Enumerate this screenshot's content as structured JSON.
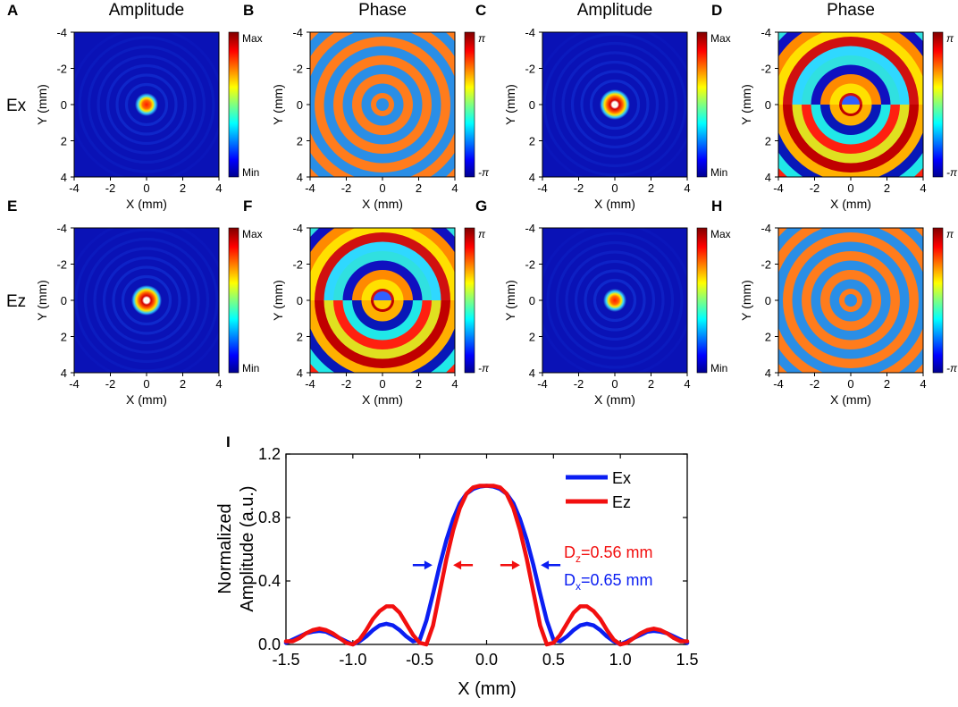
{
  "figure": {
    "panels": [
      {
        "letter": "A",
        "header": "Amplitude",
        "pattern": "amp",
        "variant": "ex",
        "cbar": "amp"
      },
      {
        "letter": "B",
        "header": "Phase",
        "pattern": "phase",
        "variant": "rings",
        "cbar": "phase"
      },
      {
        "letter": "C",
        "header": "Amplitude",
        "pattern": "amp",
        "variant": "ring",
        "cbar": "amp"
      },
      {
        "letter": "D",
        "header": "Phase",
        "pattern": "phase",
        "variant": "vortex",
        "cbar": "phase"
      },
      {
        "letter": "E",
        "header": "",
        "pattern": "amp",
        "variant": "ring",
        "cbar": "amp"
      },
      {
        "letter": "F",
        "header": "",
        "pattern": "phase",
        "variant": "vortex",
        "cbar": "phase"
      },
      {
        "letter": "G",
        "header": "",
        "pattern": "amp",
        "variant": "ex",
        "cbar": "amp"
      },
      {
        "letter": "H",
        "header": "",
        "pattern": "phase",
        "variant": "rings",
        "cbar": "phase"
      }
    ],
    "row_labels": [
      "Ex",
      "Ez"
    ],
    "amp_colorbar": {
      "max": "Max",
      "min": "Min"
    },
    "phase_colorbar": {
      "max": "π",
      "min": "-π"
    },
    "xlabel": "X (mm)",
    "ylabel": "Y (mm)",
    "xticks": [
      "-4",
      "-2",
      "0",
      "2",
      "4"
    ],
    "yticks": [
      "-4",
      "-2",
      "0",
      "2",
      "4"
    ],
    "panel_i_letter": "I",
    "colors": {
      "ex": "#0b1ef2",
      "ez": "#f20f0f",
      "map_bg": "#0a12b6",
      "ring_orange": "#ff7c1c",
      "ring_blue": "#2a8ee6"
    }
  },
  "chart_data": [
    {
      "type": "heatmap",
      "panels": [
        "A",
        "B",
        "C",
        "D",
        "E",
        "F",
        "G",
        "H"
      ],
      "x_range_mm": [
        -4,
        4
      ],
      "y_range_mm": [
        -4,
        4
      ],
      "xlabel": "X (mm)",
      "ylabel": "Y (mm)",
      "amplitude_scale": [
        "Min",
        "Max"
      ],
      "phase_scale": [
        "-π",
        "π"
      ]
    },
    {
      "type": "line",
      "panel": "I",
      "xlabel": "X (mm)",
      "ylabel_lines": [
        "Normalized",
        "Amplitude (a.u.)"
      ],
      "xlim": [
        -1.5,
        1.5
      ],
      "ylim": [
        0,
        1.2
      ],
      "xticks": [
        "-1.5",
        "-1.0",
        "-0.5",
        "0.0",
        "0.5",
        "1.0",
        "1.5"
      ],
      "yticks": [
        "0.0",
        "0.4",
        "0.8",
        "1.2"
      ],
      "series": [
        {
          "name": "Ex",
          "color": "#0b1ef2",
          "x": [
            -1.5,
            -1.45,
            -1.4,
            -1.35,
            -1.3,
            -1.25,
            -1.2,
            -1.15,
            -1.1,
            -1.05,
            -1.0,
            -0.95,
            -0.9,
            -0.85,
            -0.8,
            -0.75,
            -0.7,
            -0.65,
            -0.6,
            -0.55,
            -0.5,
            -0.45,
            -0.4,
            -0.35,
            -0.3,
            -0.25,
            -0.2,
            -0.15,
            -0.1,
            -0.05,
            0.0,
            0.05,
            0.1,
            0.15,
            0.2,
            0.25,
            0.3,
            0.35,
            0.4,
            0.45,
            0.5,
            0.55,
            0.6,
            0.65,
            0.7,
            0.75,
            0.8,
            0.85,
            0.9,
            0.95,
            1.0,
            1.05,
            1.1,
            1.15,
            1.2,
            1.25,
            1.3,
            1.35,
            1.4,
            1.45,
            1.5
          ],
          "values": [
            0.01,
            0.03,
            0.05,
            0.07,
            0.08,
            0.085,
            0.08,
            0.06,
            0.04,
            0.02,
            0.0,
            0.02,
            0.05,
            0.09,
            0.12,
            0.13,
            0.12,
            0.09,
            0.05,
            0.02,
            0.03,
            0.15,
            0.32,
            0.5,
            0.66,
            0.79,
            0.89,
            0.95,
            0.98,
            0.995,
            1.0,
            0.995,
            0.98,
            0.95,
            0.89,
            0.79,
            0.66,
            0.5,
            0.32,
            0.15,
            0.03,
            0.02,
            0.05,
            0.09,
            0.12,
            0.13,
            0.12,
            0.09,
            0.05,
            0.02,
            0.0,
            0.02,
            0.04,
            0.06,
            0.08,
            0.085,
            0.08,
            0.07,
            0.05,
            0.03,
            0.01
          ]
        },
        {
          "name": "Ez",
          "color": "#f20f0f",
          "x": [
            -1.5,
            -1.45,
            -1.4,
            -1.35,
            -1.3,
            -1.25,
            -1.2,
            -1.15,
            -1.1,
            -1.05,
            -1.0,
            -0.95,
            -0.9,
            -0.85,
            -0.8,
            -0.75,
            -0.7,
            -0.65,
            -0.6,
            -0.55,
            -0.5,
            -0.45,
            -0.4,
            -0.35,
            -0.3,
            -0.25,
            -0.2,
            -0.15,
            -0.1,
            -0.05,
            0.0,
            0.05,
            0.1,
            0.15,
            0.2,
            0.25,
            0.3,
            0.35,
            0.4,
            0.45,
            0.5,
            0.55,
            0.6,
            0.65,
            0.7,
            0.75,
            0.8,
            0.85,
            0.9,
            0.95,
            1.0,
            1.05,
            1.1,
            1.15,
            1.2,
            1.25,
            1.3,
            1.35,
            1.4,
            1.45,
            1.5
          ],
          "values": [
            0.02,
            0.02,
            0.04,
            0.07,
            0.09,
            0.1,
            0.09,
            0.07,
            0.04,
            0.01,
            0.0,
            0.03,
            0.09,
            0.16,
            0.21,
            0.24,
            0.24,
            0.2,
            0.13,
            0.06,
            0.01,
            0.0,
            0.12,
            0.33,
            0.54,
            0.72,
            0.86,
            0.95,
            0.99,
            1.0,
            1.0,
            1.0,
            0.99,
            0.95,
            0.86,
            0.72,
            0.54,
            0.33,
            0.12,
            0.0,
            0.01,
            0.06,
            0.13,
            0.2,
            0.24,
            0.24,
            0.21,
            0.16,
            0.09,
            0.03,
            0.0,
            0.01,
            0.04,
            0.07,
            0.09,
            0.1,
            0.09,
            0.07,
            0.04,
            0.02,
            0.02
          ]
        }
      ],
      "annotations": [
        {
          "label": "Dz",
          "value": "=0.56 mm",
          "color": "#f20f0f",
          "arrow_y": 0.5,
          "from_x": [
            -0.28,
            0.28
          ]
        },
        {
          "label": "Dx",
          "value": "=0.65 mm",
          "color": "#0b1ef2",
          "arrow_y": 0.5,
          "from_x": [
            -0.325,
            0.325
          ]
        }
      ]
    }
  ]
}
